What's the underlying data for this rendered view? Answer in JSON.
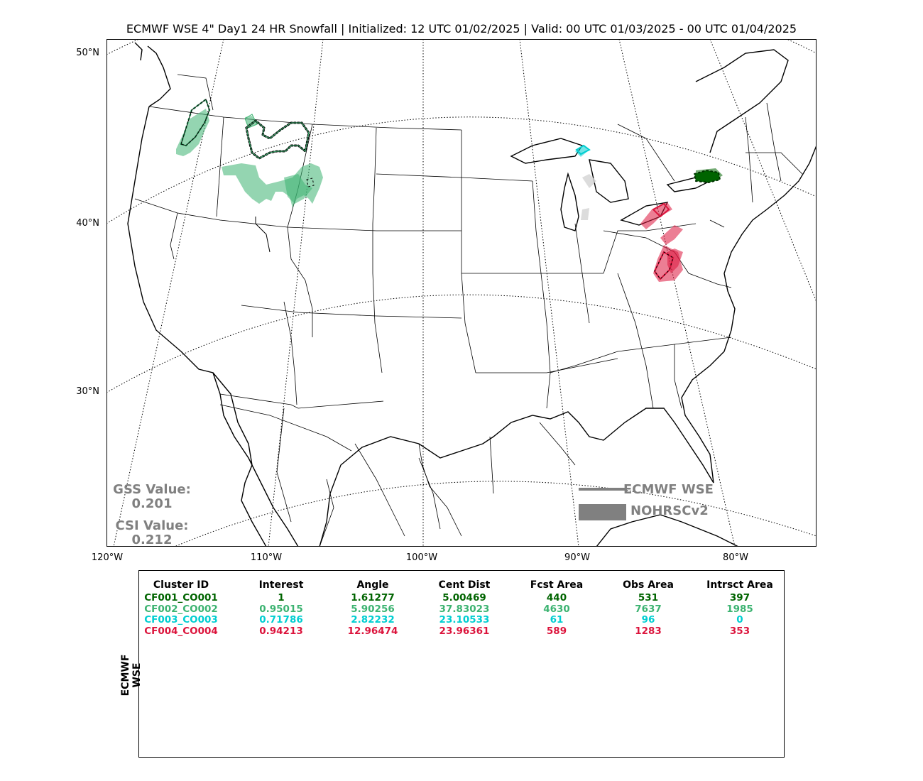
{
  "title": "ECMWF WSE 4\" Day1 24 HR Snowfall | Initialized: 12 UTC 01/02/2025 | Valid: 00 UTC 01/03/2025 - 00 UTC 01/04/2025",
  "lat_labels": [
    "50°N",
    "40°N",
    "30°N"
  ],
  "lon_labels": [
    "120°W",
    "110°W",
    "100°W",
    "90°W",
    "80°W"
  ],
  "stats": {
    "gss_label": "GSS Value:",
    "gss_value": "0.201",
    "csi_label": "CSI Value:",
    "csi_value": "0.212"
  },
  "legend": {
    "forecast": "ECMWF WSE",
    "observed": "NOHRSCv2",
    "color": "#808080"
  },
  "table": {
    "side_label": "ECMWF WSE",
    "headers": [
      "Cluster ID",
      "Interest",
      "Angle",
      "Cent Dist",
      "Fcst Area",
      "Obs Area",
      "Intrsct Area"
    ],
    "rows": [
      {
        "color": "#006400",
        "cells": [
          "CF001_CO001",
          "1",
          "1.61277",
          "5.00469",
          "440",
          "531",
          "397"
        ]
      },
      {
        "color": "#3cb371",
        "cells": [
          "CF002_CO002",
          "0.95015",
          "5.90256",
          "37.83023",
          "4630",
          "7637",
          "1985"
        ]
      },
      {
        "color": "#00ced1",
        "cells": [
          "CF003_CO003",
          "0.71786",
          "2.82232",
          "23.10533",
          "61",
          "96",
          "0"
        ]
      },
      {
        "color": "#dc143c",
        "cells": [
          "CF004_CO004",
          "0.94213",
          "12.96474",
          "23.96361",
          "589",
          "1283",
          "353"
        ]
      }
    ]
  },
  "clusters": [
    {
      "id": "CF001_CO001",
      "color": "#006400",
      "region": "western New York"
    },
    {
      "id": "CF002_CO002",
      "color": "#3cb371",
      "region": "northern Rockies"
    },
    {
      "id": "CF003_CO003",
      "color": "#00ced1",
      "region": "upper Michigan"
    },
    {
      "id": "CF004_CO004",
      "color": "#dc143c",
      "region": "Ohio Valley / Appalachians"
    }
  ]
}
